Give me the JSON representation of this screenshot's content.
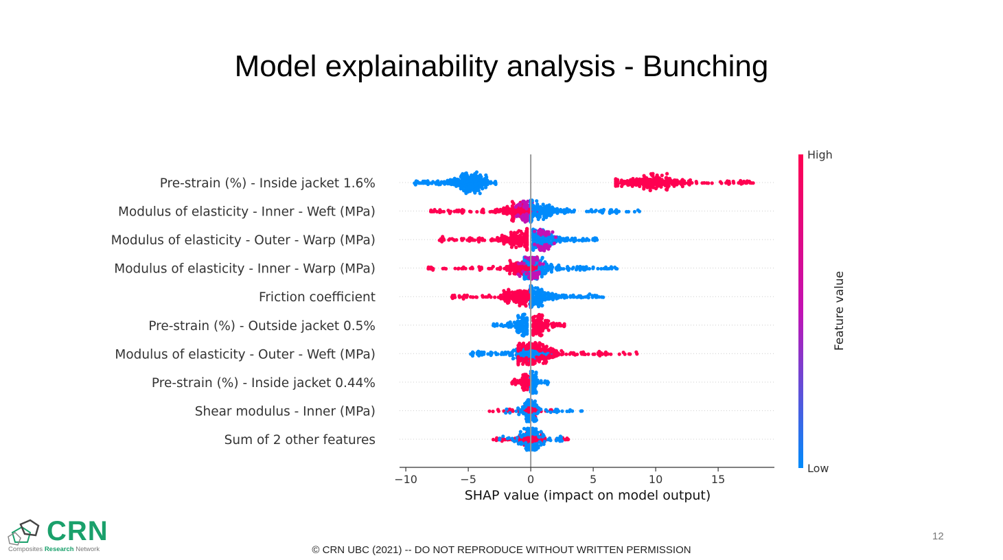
{
  "slide": {
    "title": "Model explainability analysis - Bunching",
    "footer": "© CRN UBC (2021) -- DO NOT REPRODUCE WITHOUT WRITTEN PERMISSION",
    "page_number": "12",
    "logo": {
      "text": "CRN",
      "sub_left": "Composites ",
      "sub_bold": "Research",
      "sub_right": " Network"
    }
  },
  "colors": {
    "high": "#ff0051",
    "mid": "#c212b4",
    "low": "#008bfb",
    "axis": "#333333",
    "zero_line": "#999999"
  },
  "chart_data": {
    "type": "scatter",
    "subtype": "shap-beeswarm",
    "title": "",
    "xlabel": "SHAP value (impact on model output)",
    "xlim": [
      -10.5,
      19.5
    ],
    "xticks": [
      -10,
      -5,
      0,
      5,
      10,
      15
    ],
    "colorbar": {
      "label": "Feature value",
      "high_label": "High",
      "low_label": "Low"
    },
    "features": [
      {
        "name": "Pre-strain (%) - Inside jacket 1.6%",
        "clusters": [
          {
            "min": -9.3,
            "max": -2.8,
            "peak": -4.8,
            "spread": 1.2,
            "n": 260,
            "color": "low"
          },
          {
            "min": 6.8,
            "max": 17.8,
            "peak": 9.5,
            "spread": 2.2,
            "n": 260,
            "color": "high"
          }
        ]
      },
      {
        "name": "Modulus of elasticity - Inner - Weft (MPa)",
        "clusters": [
          {
            "min": -8.0,
            "max": 0.0,
            "peak": -0.8,
            "spread": 1.5,
            "n": 200,
            "color": "high"
          },
          {
            "min": -1.2,
            "max": 0.6,
            "peak": -0.3,
            "spread": 0.4,
            "n": 60,
            "color": "mid"
          },
          {
            "min": 0.0,
            "max": 8.7,
            "peak": 0.6,
            "spread": 1.8,
            "n": 200,
            "color": "low"
          }
        ]
      },
      {
        "name": "Modulus of elasticity - Outer - Warp (MPa)",
        "clusters": [
          {
            "min": -7.3,
            "max": -0.3,
            "peak": -1.0,
            "spread": 1.5,
            "n": 200,
            "color": "high"
          },
          {
            "min": 0.2,
            "max": 5.3,
            "peak": 0.9,
            "spread": 1.2,
            "n": 200,
            "color": "low"
          },
          {
            "min": 0.3,
            "max": 2.0,
            "peak": 0.9,
            "spread": 0.5,
            "n": 50,
            "color": "mid"
          }
        ]
      },
      {
        "name": "Modulus of elasticity - Inner - Warp (MPa)",
        "clusters": [
          {
            "min": -8.2,
            "max": 0.5,
            "peak": -0.3,
            "spread": 1.5,
            "n": 200,
            "color": "high"
          },
          {
            "min": -0.5,
            "max": 6.9,
            "peak": 0.4,
            "spread": 1.4,
            "n": 200,
            "color": "low"
          },
          {
            "min": -1.0,
            "max": 1.0,
            "peak": 0.2,
            "spread": 0.5,
            "n": 60,
            "color": "mid"
          }
        ]
      },
      {
        "name": "Friction coefficient",
        "clusters": [
          {
            "min": -6.3,
            "max": 0.0,
            "peak": -0.6,
            "spread": 1.4,
            "n": 200,
            "color": "high"
          },
          {
            "min": 0.0,
            "max": 5.8,
            "peak": 0.5,
            "spread": 1.3,
            "n": 200,
            "color": "low"
          }
        ]
      },
      {
        "name": "Pre-strain (%) - Outside jacket 0.5%",
        "clusters": [
          {
            "min": -3.0,
            "max": -0.3,
            "peak": -0.6,
            "spread": 0.6,
            "n": 130,
            "color": "low"
          },
          {
            "min": 0.2,
            "max": 2.7,
            "peak": 0.6,
            "spread": 0.6,
            "n": 130,
            "color": "high"
          }
        ]
      },
      {
        "name": "Modulus of elasticity - Outer - Weft (MPa)",
        "clusters": [
          {
            "min": -4.8,
            "max": 2.0,
            "peak": 0.0,
            "spread": 1.1,
            "n": 200,
            "color": "low"
          },
          {
            "min": -1.0,
            "max": 8.5,
            "peak": 0.5,
            "spread": 2.0,
            "n": 200,
            "color": "high"
          }
        ]
      },
      {
        "name": "Pre-strain (%) - Inside jacket 0.44%",
        "clusters": [
          {
            "min": -1.5,
            "max": 0.0,
            "peak": -0.4,
            "spread": 0.4,
            "n": 70,
            "color": "high"
          },
          {
            "min": 0.0,
            "max": 1.4,
            "peak": 0.3,
            "spread": 0.3,
            "n": 70,
            "color": "low"
          }
        ]
      },
      {
        "name": "Shear modulus - Inner (MPa)",
        "clusters": [
          {
            "min": -3.3,
            "max": 2.0,
            "peak": 0.0,
            "spread": 0.6,
            "n": 110,
            "color": "high"
          },
          {
            "min": -2.0,
            "max": 4.1,
            "peak": 0.0,
            "spread": 0.6,
            "n": 110,
            "color": "low"
          }
        ]
      },
      {
        "name": "Sum of 2 other features",
        "clusters": [
          {
            "min": -3.0,
            "max": 3.0,
            "peak": 0.0,
            "spread": 0.8,
            "n": 140,
            "color": "high"
          },
          {
            "min": -2.5,
            "max": 2.5,
            "peak": 0.0,
            "spread": 0.7,
            "n": 140,
            "color": "low"
          }
        ]
      }
    ]
  }
}
